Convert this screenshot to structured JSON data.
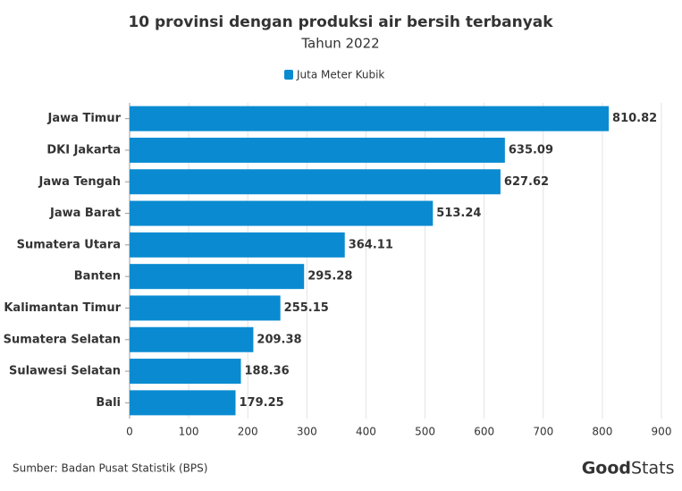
{
  "chart_data": {
    "type": "hbar",
    "title": "10 provinsi dengan produksi air bersih terbanyak",
    "subtitle": "Tahun 2022",
    "categories": [
      "Jawa Timur",
      "DKI Jakarta",
      "Jawa Tengah",
      "Jawa Barat",
      "Sumatera Utara",
      "Banten",
      "Kalimantan Timur",
      "Sumatera Selatan",
      "Sulawesi Selatan",
      "Bali"
    ],
    "series": [
      {
        "name": "Juta Meter Kubik",
        "color": "#0a8bd1",
        "values": [
          810.82,
          635.09,
          627.62,
          513.24,
          364.11,
          295.28,
          255.15,
          209.38,
          188.36,
          179.25
        ]
      }
    ],
    "xlim": [
      0,
      900
    ],
    "xticks": [
      0,
      100,
      200,
      300,
      400,
      500,
      600,
      700,
      800,
      900
    ],
    "grid": true,
    "legend": "top",
    "source": "Sumber: Badan Pusat Statistik (BPS)",
    "logo": [
      "Good",
      "Stats"
    ]
  }
}
